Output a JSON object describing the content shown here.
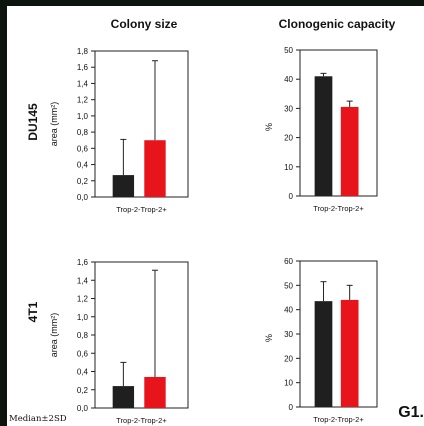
{
  "figure": {
    "col_titles": [
      "Colony size",
      "Clonogenic capacity"
    ],
    "row_labels": [
      "DU145",
      "4T1"
    ],
    "footnote": "Median±2SD",
    "panel_id": "G1."
  },
  "colors": {
    "trop2_neg": "#1f1f1f",
    "trop2_pos": "#e8141b",
    "page_bg": "#ffffff",
    "border": "#0d130d"
  },
  "chart_data": [
    {
      "type": "bar",
      "row": "DU145",
      "col": "Colony size",
      "categories": [
        "Trop-2-",
        "Trop-2+"
      ],
      "values": [
        0.27,
        0.7
      ],
      "error_upper": [
        0.44,
        0.98
      ],
      "ylabel": "area (mm²)",
      "ylim": [
        0,
        1.8
      ],
      "yticks": [
        "0,0",
        "0,2",
        "0,4",
        "0,6",
        "0,8",
        "1,0",
        "1,2",
        "1,4",
        "1,6",
        "1,8"
      ]
    },
    {
      "type": "bar",
      "row": "DU145",
      "col": "Clonogenic capacity",
      "categories": [
        "Trop-2-",
        "Trop-2+"
      ],
      "values": [
        41,
        30.5
      ],
      "error_upper": [
        1.0,
        2.0
      ],
      "ylabel": "%",
      "ylim": [
        0,
        50
      ],
      "yticks": [
        "0",
        "10",
        "20",
        "30",
        "40",
        "50"
      ]
    },
    {
      "type": "bar",
      "row": "4T1",
      "col": "Colony size",
      "categories": [
        "Trop-2-",
        "Trop-2+"
      ],
      "values": [
        0.24,
        0.34
      ],
      "error_upper": [
        0.26,
        1.17
      ],
      "ylabel": "area (mm²)",
      "ylim": [
        0,
        1.6
      ],
      "yticks": [
        "0,0",
        "0,2",
        "0,4",
        "0,6",
        "0,8",
        "1,0",
        "1,2",
        "1,4",
        "1,6"
      ]
    },
    {
      "type": "bar",
      "row": "4T1",
      "col": "Clonogenic capacity",
      "categories": [
        "Trop-2-",
        "Trop-2+"
      ],
      "values": [
        43.5,
        44
      ],
      "error_upper": [
        8,
        6
      ],
      "ylabel": "%",
      "ylim": [
        0,
        60
      ],
      "yticks": [
        "0",
        "10",
        "20",
        "30",
        "40",
        "50",
        "60"
      ]
    }
  ]
}
